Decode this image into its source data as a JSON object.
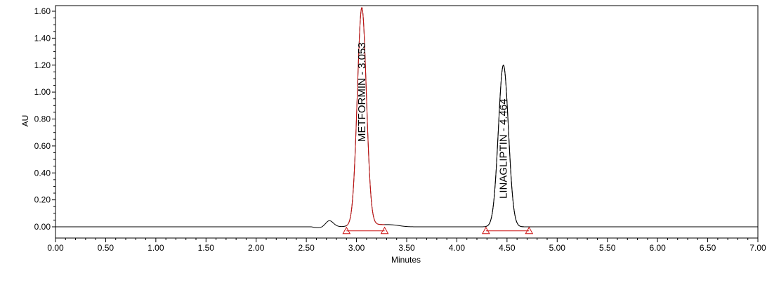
{
  "chart_data": {
    "type": "line",
    "title": "",
    "xlabel": "Minutes",
    "ylabel": "AU",
    "xlim": [
      0.0,
      7.0
    ],
    "ylim": [
      -0.08,
      1.63
    ],
    "grid": false,
    "x_ticks": [
      "0.00",
      "0.50",
      "1.00",
      "1.50",
      "2.00",
      "2.50",
      "3.00",
      "3.50",
      "4.00",
      "4.50",
      "5.00",
      "5.50",
      "6.00",
      "6.50",
      "7.00"
    ],
    "y_ticks": [
      "0.00",
      "0.20",
      "0.40",
      "0.60",
      "0.80",
      "1.00",
      "1.20",
      "1.40",
      "1.60"
    ],
    "colors": {
      "trace": "#000000",
      "integration": "#cc1111",
      "axis": "#000000"
    },
    "baseline_au": -0.03,
    "bumps": [
      {
        "rt": 2.73,
        "height": 0.045,
        "sigma": 0.04
      },
      {
        "rt": 3.12,
        "height": 0.02,
        "sigma": 0.12
      },
      {
        "rt": 3.35,
        "height": 0.012,
        "sigma": 0.08
      }
    ],
    "peaks": [
      {
        "label": "METFORMIN - 3.053",
        "rt": 3.053,
        "height": 1.61,
        "sigma": 0.045,
        "start": 2.9,
        "end": 3.28
      },
      {
        "label": "LINAGLIPTIN - 4.464",
        "rt": 4.464,
        "height": 1.2,
        "sigma": 0.05,
        "start": 4.29,
        "end": 4.72
      }
    ]
  }
}
